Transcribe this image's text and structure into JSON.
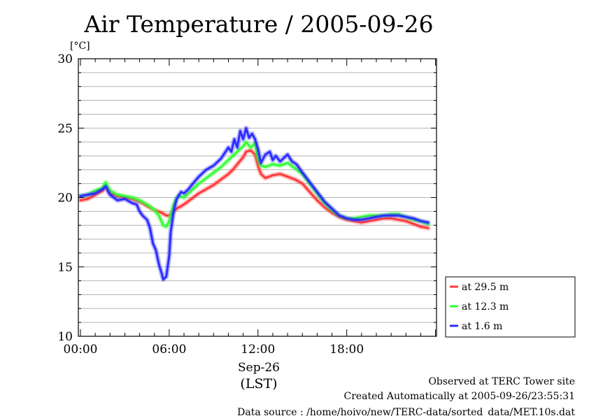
{
  "chart_data": {
    "type": "line",
    "title": "Air Temperature / 2005-09-26",
    "ylabel": "[°C]",
    "ylim": [
      10,
      30
    ],
    "yticks": [
      10,
      15,
      20,
      25,
      30
    ],
    "xlim": [
      0,
      24
    ],
    "xticks": [
      {
        "h": 0,
        "label": "00:00"
      },
      {
        "h": 6,
        "label": "06:00"
      },
      {
        "h": 12,
        "label": "12:00"
      },
      {
        "h": 18,
        "label": "18:00"
      }
    ],
    "xlabel_date": "Sep-26",
    "xlabel_unit": "(LST)",
    "grid": "horizontal",
    "legend_position": "right",
    "series": [
      {
        "name": "at 29.5 m",
        "color": "#ff3b3b",
        "x": [
          0,
          0.5,
          1,
          1.5,
          1.7,
          2,
          2.5,
          3,
          3.5,
          4,
          4.5,
          5,
          5.5,
          5.8,
          6,
          6.2,
          6.5,
          7,
          7.5,
          8,
          8.5,
          9,
          9.5,
          10,
          10.3,
          10.6,
          11,
          11.2,
          11.5,
          11.8,
          12,
          12.2,
          12.5,
          13,
          13.5,
          14,
          14.5,
          15,
          15.5,
          16,
          16.5,
          17,
          17.5,
          18,
          18.5,
          19,
          19.5,
          20,
          20.5,
          21,
          21.5,
          22,
          22.5,
          23,
          23.5
        ],
        "y": [
          19.8,
          19.9,
          20.2,
          20.5,
          20.8,
          20.3,
          20.1,
          20.0,
          19.9,
          19.7,
          19.4,
          19.1,
          18.9,
          18.7,
          18.7,
          18.9,
          19.2,
          19.5,
          19.9,
          20.3,
          20.6,
          20.9,
          21.3,
          21.7,
          22.0,
          22.4,
          22.9,
          23.3,
          23.4,
          23.1,
          22.3,
          21.7,
          21.4,
          21.6,
          21.7,
          21.5,
          21.3,
          21.0,
          20.4,
          19.8,
          19.3,
          18.9,
          18.6,
          18.4,
          18.3,
          18.2,
          18.3,
          18.4,
          18.5,
          18.5,
          18.4,
          18.3,
          18.1,
          17.9,
          17.8
        ]
      },
      {
        "name": "at 12.3 m",
        "color": "#33ff33",
        "x": [
          0,
          0.5,
          1,
          1.5,
          1.7,
          2,
          2.5,
          3,
          3.5,
          4,
          4.5,
          5,
          5.3,
          5.6,
          5.8,
          6,
          6.3,
          6.6,
          7,
          7.5,
          8,
          8.5,
          9,
          9.5,
          10,
          10.3,
          10.6,
          11,
          11.2,
          11.5,
          11.8,
          12,
          12.2,
          12.5,
          13,
          13.5,
          14,
          14.5,
          15,
          15.5,
          16,
          16.5,
          17,
          17.5,
          18,
          18.5,
          19,
          19.5,
          20,
          20.5,
          21,
          21.5,
          22,
          22.5,
          23,
          23.5
        ],
        "y": [
          20.1,
          20.2,
          20.5,
          20.7,
          21.1,
          20.5,
          20.2,
          20.1,
          20.0,
          19.8,
          19.5,
          19.1,
          18.7,
          18.0,
          17.9,
          18.3,
          19.5,
          20.1,
          20.0,
          20.5,
          21.0,
          21.4,
          21.8,
          22.2,
          22.7,
          23.0,
          23.3,
          23.7,
          24.0,
          23.6,
          23.9,
          22.8,
          22.3,
          22.2,
          22.4,
          22.3,
          22.5,
          22.1,
          21.7,
          21.0,
          20.3,
          19.6,
          19.1,
          18.7,
          18.5,
          18.5,
          18.6,
          18.7,
          18.7,
          18.7,
          18.8,
          18.8,
          18.6,
          18.4,
          18.3,
          18.1
        ]
      },
      {
        "name": "at 1.6 m",
        "color": "#2d2dff",
        "x": [
          0,
          0.5,
          1,
          1.5,
          1.7,
          2,
          2.5,
          3,
          3.5,
          3.8,
          4,
          4.2,
          4.5,
          4.7,
          4.9,
          5.1,
          5.3,
          5.5,
          5.6,
          5.8,
          6,
          6.1,
          6.3,
          6.5,
          6.8,
          7,
          7.3,
          7.6,
          8,
          8.5,
          9,
          9.5,
          10,
          10.2,
          10.4,
          10.6,
          10.8,
          11,
          11.2,
          11.4,
          11.6,
          11.8,
          12,
          12.2,
          12.5,
          12.8,
          13,
          13.2,
          13.5,
          13.8,
          14,
          14.3,
          14.6,
          15,
          15.5,
          16,
          16.5,
          17,
          17.5,
          18,
          18.5,
          19,
          19.5,
          20,
          20.5,
          21,
          21.5,
          22,
          22.5,
          23,
          23.5
        ],
        "y": [
          20.1,
          20.2,
          20.3,
          20.6,
          20.8,
          20.2,
          19.8,
          19.9,
          19.6,
          19.5,
          19.0,
          18.7,
          18.4,
          17.8,
          16.7,
          16.2,
          15.2,
          14.5,
          14.1,
          14.3,
          15.8,
          17.5,
          19.0,
          19.9,
          20.4,
          20.3,
          20.6,
          21.0,
          21.5,
          22.0,
          22.3,
          22.8,
          23.6,
          23.3,
          24.2,
          23.6,
          24.8,
          24.2,
          25.0,
          24.3,
          24.6,
          24.2,
          23.5,
          22.5,
          23.1,
          23.3,
          22.7,
          23.0,
          22.6,
          22.9,
          23.1,
          22.6,
          22.4,
          21.8,
          21.1,
          20.4,
          19.7,
          19.2,
          18.7,
          18.5,
          18.4,
          18.4,
          18.5,
          18.6,
          18.7,
          18.7,
          18.7,
          18.6,
          18.5,
          18.3,
          18.2
        ]
      }
    ]
  },
  "footer": {
    "line1": "Observed at TERC Tower site",
    "line2": "Created Automatically at 2005-09-26/23:55:31",
    "line3": "Data source : /home/hoivo/new/TERC-data/sorted_data/MET.10s.dat"
  }
}
